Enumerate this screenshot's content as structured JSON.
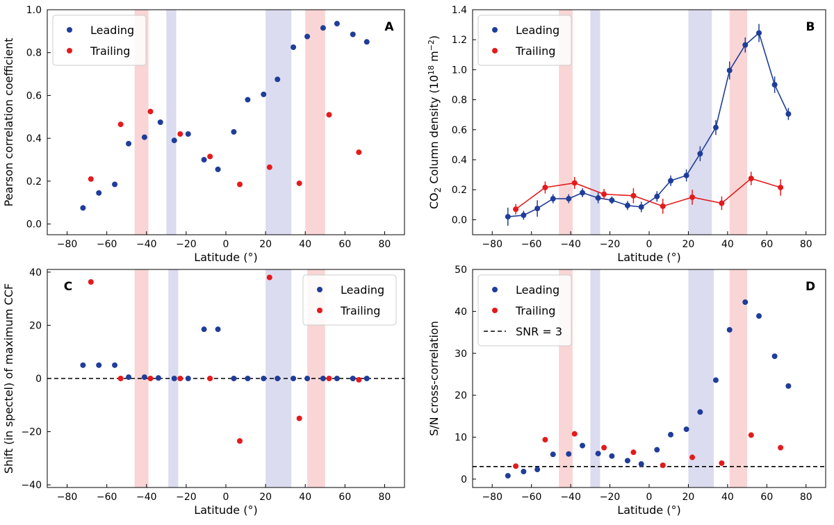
{
  "chart_data": [
    {
      "panel": "A",
      "type": "scatter",
      "xlabel": "Latitude (°)",
      "ylabel": "Pearson correlation coefficient",
      "xlim": [
        -90,
        90
      ],
      "ylim": [
        -0.05,
        1.0
      ],
      "xticks": [
        -80,
        -60,
        -40,
        -20,
        0,
        20,
        40,
        60,
        80
      ],
      "xtick_labels": [
        "−80",
        "−60",
        "−40",
        "−20",
        "0",
        "20",
        "40",
        "60",
        "80"
      ],
      "yticks": [
        0.0,
        0.2,
        0.4,
        0.6,
        0.8,
        1.0
      ],
      "ytick_labels": [
        "0.0",
        "0.2",
        "0.4",
        "0.6",
        "0.8",
        "1.0"
      ],
      "legend_position": "top-left",
      "letter_position": "top-right",
      "bands": [
        {
          "x0": -46,
          "x1": -39,
          "color": "red"
        },
        {
          "x0": -30,
          "x1": -25,
          "color": "blue"
        },
        {
          "x0": 20,
          "x1": 33,
          "color": "blue"
        },
        {
          "x0": 40,
          "x1": 50,
          "color": "red"
        }
      ],
      "series": [
        {
          "name": "Leading",
          "color": "#1f3d99",
          "x": [
            -72,
            -64,
            -56,
            -49,
            -41,
            -33,
            -26,
            -19,
            -11,
            -4,
            4,
            11,
            19,
            26,
            34,
            41,
            49,
            56,
            64,
            71
          ],
          "y": [
            0.075,
            0.145,
            0.185,
            0.375,
            0.405,
            0.475,
            0.39,
            0.42,
            0.3,
            0.255,
            0.43,
            0.58,
            0.605,
            0.675,
            0.825,
            0.875,
            0.915,
            0.935,
            0.885,
            0.85
          ]
        },
        {
          "name": "Trailing",
          "color": "#e41a1c",
          "x": [
            -68,
            -53,
            -38,
            -23,
            -8,
            7,
            22,
            37,
            52,
            67
          ],
          "y": [
            0.21,
            0.465,
            0.525,
            0.42,
            0.315,
            0.185,
            0.265,
            0.19,
            0.51,
            0.335
          ]
        }
      ]
    },
    {
      "panel": "B",
      "type": "line",
      "xlabel": "Latitude (°)",
      "ylabel": "CO₂ Column density (10¹⁸ m⁻²)",
      "ylabel_parts": {
        "pre": "CO",
        "sub": "2",
        "mid": " Column density (10",
        "sup": "18",
        "post1": " m",
        "sup2": "−2",
        "post2": ")"
      },
      "xlim": [
        -90,
        90
      ],
      "ylim": [
        -0.1,
        1.4
      ],
      "xticks": [
        -80,
        -60,
        -40,
        -20,
        0,
        20,
        40,
        60,
        80
      ],
      "xtick_labels": [
        "−80",
        "−60",
        "−40",
        "−20",
        "0",
        "20",
        "40",
        "60",
        "80"
      ],
      "yticks": [
        0.0,
        0.2,
        0.4,
        0.6,
        0.8,
        1.0,
        1.2,
        1.4
      ],
      "ytick_labels": [
        "0.0",
        "0.2",
        "0.4",
        "0.6",
        "0.8",
        "1.0",
        "1.2",
        "1.4"
      ],
      "legend_position": "top-left",
      "letter_position": "top-right",
      "bands": [
        {
          "x0": -46,
          "x1": -39,
          "color": "red"
        },
        {
          "x0": -30,
          "x1": -25,
          "color": "blue"
        },
        {
          "x0": 20,
          "x1": 32,
          "color": "blue"
        },
        {
          "x0": 41,
          "x1": 50,
          "color": "red"
        }
      ],
      "series": [
        {
          "name": "Leading",
          "color": "#1f3d99",
          "connected": true,
          "x": [
            -72,
            -64,
            -57,
            -49,
            -41,
            -34,
            -26,
            -19,
            -11,
            -4,
            4,
            11,
            19,
            26,
            34,
            41,
            49,
            56,
            64,
            71
          ],
          "y": [
            0.02,
            0.03,
            0.075,
            0.14,
            0.14,
            0.18,
            0.145,
            0.13,
            0.095,
            0.085,
            0.155,
            0.26,
            0.295,
            0.44,
            0.615,
            0.995,
            1.165,
            1.245,
            0.9,
            0.705
          ],
          "err": [
            0.06,
            0.03,
            0.055,
            0.03,
            0.03,
            0.03,
            0.035,
            0.025,
            0.03,
            0.035,
            0.035,
            0.035,
            0.04,
            0.05,
            0.05,
            0.06,
            0.05,
            0.06,
            0.055,
            0.04
          ]
        },
        {
          "name": "Trailing",
          "color": "#e41a1c",
          "connected": true,
          "x": [
            -68,
            -53,
            -38,
            -23,
            -8,
            7,
            22,
            37,
            52,
            67
          ],
          "y": [
            0.07,
            0.215,
            0.245,
            0.17,
            0.16,
            0.09,
            0.15,
            0.11,
            0.275,
            0.215
          ],
          "err": [
            0.035,
            0.04,
            0.04,
            0.035,
            0.05,
            0.05,
            0.05,
            0.045,
            0.045,
            0.055
          ]
        }
      ]
    },
    {
      "panel": "C",
      "type": "scatter",
      "xlabel": "Latitude (°)",
      "ylabel": "Shift (in spectel) of maximum CCF",
      "xlim": [
        -90,
        90
      ],
      "ylim": [
        -41,
        41
      ],
      "xticks": [
        -80,
        -60,
        -40,
        -20,
        0,
        20,
        40,
        60,
        80
      ],
      "xtick_labels": [
        "−80",
        "−60",
        "−40",
        "−20",
        "0",
        "20",
        "40",
        "60",
        "80"
      ],
      "yticks": [
        -40,
        -20,
        0,
        20,
        40
      ],
      "ytick_labels": [
        "−40",
        "−20",
        "0",
        "20",
        "40"
      ],
      "hline": {
        "y": 0,
        "style": "dashed"
      },
      "legend_position": "top-right",
      "letter_position": "top-left",
      "bands": [
        {
          "x0": -46,
          "x1": -39,
          "color": "red"
        },
        {
          "x0": -29,
          "x1": -24,
          "color": "blue"
        },
        {
          "x0": 20,
          "x1": 33,
          "color": "blue"
        },
        {
          "x0": 41,
          "x1": 50,
          "color": "red"
        }
      ],
      "series": [
        {
          "name": "Leading",
          "color": "#1f3d99",
          "x": [
            -72,
            -64,
            -56,
            -49,
            -41,
            -34,
            -26,
            -19,
            -11,
            -4,
            4,
            11,
            19,
            26,
            34,
            41,
            49,
            56,
            64,
            71
          ],
          "y": [
            5,
            5,
            5,
            0.5,
            0.5,
            0.2,
            0,
            0,
            18.5,
            18.5,
            0,
            0,
            0,
            0,
            0,
            0,
            0,
            0,
            0,
            0
          ]
        },
        {
          "name": "Trailing",
          "color": "#e41a1c",
          "x": [
            -68,
            -53,
            -38,
            -23,
            -8,
            7,
            22,
            37,
            52,
            67
          ],
          "y": [
            36.3,
            0,
            0,
            0,
            0,
            -23.5,
            38,
            -15,
            0,
            -0.5
          ]
        }
      ]
    },
    {
      "panel": "D",
      "type": "scatter",
      "xlabel": "Latitude (°)",
      "ylabel": "S/N cross-correlation",
      "xlim": [
        -90,
        90
      ],
      "ylim": [
        -2,
        50
      ],
      "xticks": [
        -80,
        -60,
        -40,
        -20,
        0,
        20,
        40,
        60,
        80
      ],
      "xtick_labels": [
        "−80",
        "−60",
        "−40",
        "−20",
        "0",
        "20",
        "40",
        "60",
        "80"
      ],
      "yticks": [
        0,
        10,
        20,
        30,
        40,
        50
      ],
      "ytick_labels": [
        "0",
        "10",
        "20",
        "30",
        "40",
        "50"
      ],
      "hline": {
        "y": 3,
        "style": "dashed",
        "label": "SNR = 3"
      },
      "legend_position": "top-left",
      "letter_position": "top-right",
      "bands": [
        {
          "x0": -46,
          "x1": -39,
          "color": "red"
        },
        {
          "x0": -30,
          "x1": -25,
          "color": "blue"
        },
        {
          "x0": 20,
          "x1": 33,
          "color": "blue"
        },
        {
          "x0": 41,
          "x1": 50,
          "color": "red"
        }
      ],
      "series": [
        {
          "name": "Leading",
          "color": "#1f3d99",
          "x": [
            -72,
            -64,
            -57,
            -49,
            -41,
            -34,
            -26,
            -19,
            -11,
            -4,
            4,
            11,
            19,
            26,
            34,
            41,
            49,
            56,
            64,
            71
          ],
          "y": [
            0.8,
            1.8,
            2.3,
            5.9,
            6.0,
            8.0,
            6.1,
            5.5,
            4.4,
            3.6,
            7.0,
            10.6,
            11.9,
            16.0,
            23.6,
            35.6,
            42.2,
            38.9,
            29.3,
            22.2
          ]
        },
        {
          "name": "Trailing",
          "color": "#e41a1c",
          "x": [
            -68,
            -53,
            -38,
            -23,
            -8,
            7,
            22,
            37,
            52,
            67
          ],
          "y": [
            3.1,
            9.4,
            10.8,
            7.5,
            6.4,
            3.3,
            5.2,
            3.8,
            10.5,
            7.5
          ]
        }
      ]
    }
  ],
  "colors": {
    "leading": "#1f3d99",
    "trailing": "#e41a1c",
    "band_red": "#f9d5d5",
    "band_blue": "#dcdcf0"
  }
}
